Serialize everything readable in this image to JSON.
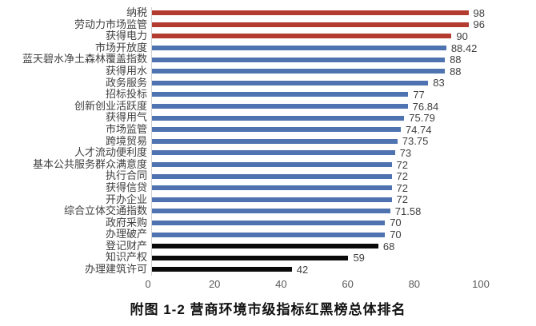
{
  "chart_data": {
    "type": "bar",
    "orientation": "horizontal",
    "title": "附图 1-2 营商环境市级指标红黑榜总体排名",
    "categories": [
      "纳税",
      "劳动力市场监管",
      "获得电力",
      "市场开放度",
      "蓝天碧水净土森林覆盖指数",
      "获得用水",
      "政务服务",
      "招标投标",
      "创新创业活跃度",
      "获得用气",
      "市场监管",
      "跨境贸易",
      "人才流动便利度",
      "基本公共服务群众满意度",
      "执行合同",
      "获得信贷",
      "开办企业",
      "综合立体交通指数",
      "政府采购",
      "办理破产",
      "登记财产",
      "知识产权",
      "办理建筑许可"
    ],
    "values": [
      98,
      96,
      90,
      88.42,
      88,
      88,
      83,
      77,
      76.84,
      75.79,
      74.74,
      73.75,
      73,
      72,
      72,
      72,
      72,
      71.58,
      70,
      70,
      68,
      59,
      42
    ],
    "value_labels": [
      "98",
      "96",
      "90",
      "88.42",
      "88",
      "88",
      "83",
      "77",
      "76.84",
      "75.79",
      "74.74",
      "73.75",
      "73",
      "72",
      "72",
      "72",
      "72",
      "71.58",
      "70",
      "70",
      "68",
      "59",
      "42"
    ],
    "bar_colors": [
      "red",
      "red",
      "red",
      "blue",
      "blue",
      "blue",
      "blue",
      "blue",
      "blue",
      "blue",
      "blue",
      "blue",
      "blue",
      "blue",
      "blue",
      "blue",
      "blue",
      "blue",
      "blue",
      "blue",
      "black",
      "black",
      "black"
    ],
    "color_map": {
      "red": "#b43b30",
      "blue": "#4e73b0",
      "black": "#0a0a0a"
    },
    "xlim": [
      0,
      100
    ],
    "x_ticks": [
      0,
      20,
      40,
      60,
      80,
      100
    ],
    "x_tick_labels": [
      "0",
      "20",
      "40",
      "60",
      "80",
      "100"
    ],
    "xlabel": "",
    "ylabel": "",
    "grid": false,
    "legend": "none"
  }
}
